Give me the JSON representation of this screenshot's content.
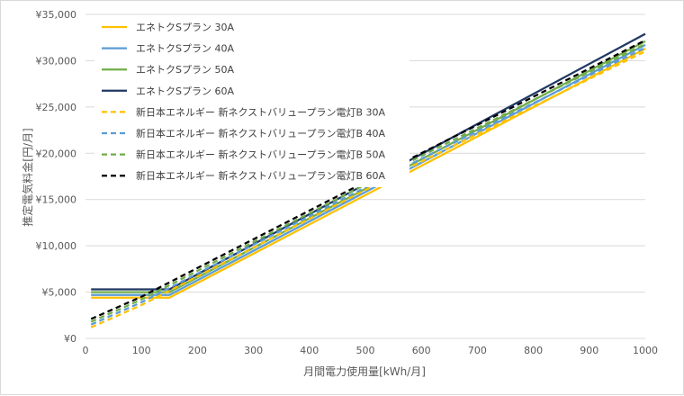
{
  "chart_data": {
    "type": "line",
    "xlabel": "月間電力使用量[kWh/月]",
    "ylabel": "推定電気料金[円/月]",
    "xlim": [
      0,
      1000
    ],
    "ylim": [
      0,
      35000
    ],
    "x_ticks": [
      "0",
      "100",
      "200",
      "300",
      "400",
      "500",
      "600",
      "700",
      "800",
      "900",
      "1000"
    ],
    "y_ticks": [
      "¥0",
      "¥5,000",
      "¥10,000",
      "¥15,000",
      "¥20,000",
      "¥25,000",
      "¥30,000",
      "¥35,000"
    ],
    "grid": "horizontal",
    "legend_position": "top-left",
    "series": [
      {
        "name": "エネトクSプラン 30A",
        "color": "#ffc000",
        "dash": false,
        "points": [
          [
            10,
            4400
          ],
          [
            150,
            4400
          ],
          [
            1000,
            31300
          ]
        ]
      },
      {
        "name": "エネトクSプラン 40A",
        "color": "#5b9bd5",
        "dash": false,
        "points": [
          [
            10,
            4700
          ],
          [
            150,
            4700
          ],
          [
            1000,
            31700
          ]
        ]
      },
      {
        "name": "エネトクSプラン 50A",
        "color": "#70ad47",
        "dash": false,
        "points": [
          [
            10,
            5000
          ],
          [
            150,
            5000
          ],
          [
            1000,
            32100
          ]
        ]
      },
      {
        "name": "エネトクSプラン 60A",
        "color": "#203864",
        "dash": false,
        "points": [
          [
            10,
            5300
          ],
          [
            150,
            5300
          ],
          [
            1000,
            32900
          ]
        ]
      },
      {
        "name": "新日本エネルギー 新ネクストバリュープラン電灯B 30A",
        "color": "#ffc000",
        "dash": true,
        "points": [
          [
            10,
            1200
          ],
          [
            100,
            3600
          ],
          [
            580,
            18500
          ],
          [
            1000,
            31000
          ]
        ]
      },
      {
        "name": "新日本エネルギー 新ネクストバリュープラン電灯B 40A",
        "color": "#5b9bd5",
        "dash": true,
        "points": [
          [
            10,
            1500
          ],
          [
            100,
            3900
          ],
          [
            580,
            18800
          ],
          [
            1000,
            31400
          ]
        ]
      },
      {
        "name": "新日本エネルギー 新ネクストバリュープラン電灯B 50A",
        "color": "#70ad47",
        "dash": true,
        "points": [
          [
            10,
            1800
          ],
          [
            100,
            4200
          ],
          [
            580,
            19100
          ],
          [
            1000,
            31800
          ]
        ]
      },
      {
        "name": "新日本エネルギー 新ネクストバリュープラン電灯B 60A",
        "color": "#000000",
        "dash": true,
        "points": [
          [
            10,
            2100
          ],
          [
            100,
            4500
          ],
          [
            580,
            19400
          ],
          [
            1000,
            32200
          ]
        ]
      }
    ]
  }
}
